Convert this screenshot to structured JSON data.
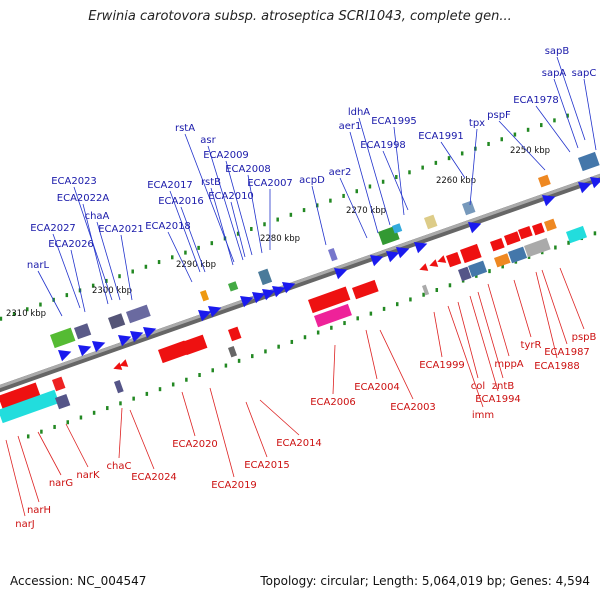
{
  "title": "Erwinia carotovora subsp. atroseptica SCRI1043, complete gen...",
  "footer": {
    "accession": "Accession: NC_004547",
    "stats": "Topology: circular; Length: 5,064,019 bp; Genes: 4,594"
  },
  "colors": {
    "forward_label": "#1a1aaa",
    "reverse_label": "#cc1111",
    "backbone": "#888888",
    "tick": "#228822"
  },
  "kbp_ticks": [
    "2250 kbp",
    "2260 kbp",
    "2270 kbp",
    "2280 kbp",
    "2290 kbp",
    "2300 kbp",
    "2310 kbp"
  ],
  "forward_genes": [
    "sapB",
    "sapA",
    "sapC",
    "ECA1978",
    "pspF",
    "tpx",
    "ECA1991",
    "ldhA",
    "aer1",
    "ECA1995",
    "ECA1998",
    "aer2",
    "acpD",
    "rstA",
    "asr",
    "ECA2009",
    "ECA2008",
    "ECA2007",
    "rstB",
    "ECA2010",
    "ECA2017",
    "ECA2016",
    "ECA2018",
    "ECA2023",
    "ECA2022A",
    "chaA",
    "ECA2021",
    "ECA2027",
    "ECA2026",
    "narL"
  ],
  "reverse_genes": [
    "pspB",
    "ECA1987",
    "ECA1988",
    "tyrR",
    "mppA",
    "zntB",
    "ECA1994",
    "col",
    "imm",
    "ECA1999",
    "ECA2004",
    "ECA2003",
    "ECA2006",
    "ECA2014",
    "ECA2015",
    "ECA2019",
    "ECA2020",
    "chaC",
    "ECA2024",
    "narK",
    "narG",
    "narH",
    "narJ"
  ]
}
